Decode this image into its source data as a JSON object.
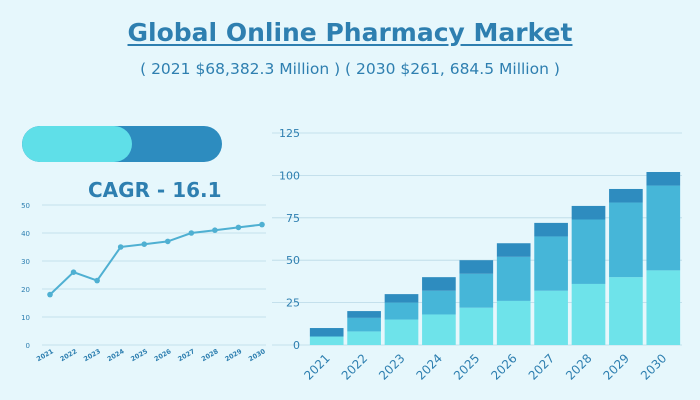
{
  "title": "Global Online Pharmacy Market",
  "subtitle": "( 2021 $68,382.3 Million ) ( 2030 $261, 684.5 Million )",
  "cagr_label": "CAGR - 16.1",
  "colors": {
    "background": "#e6f7fc",
    "text": "#2e7fb0",
    "bar_base": "#6ee3ea",
    "bar_mid": "#46b6d8",
    "bar_top": "#2e8cbf",
    "line": "#4fb0d2",
    "grid": "#b9d9e6"
  },
  "progress": {
    "fraction": 0.55
  },
  "chart_data": [
    {
      "type": "line",
      "x": [
        "2021",
        "2022",
        "2023",
        "2024",
        "2025",
        "2026",
        "2027",
        "2028",
        "2029",
        "2030"
      ],
      "series": [
        {
          "values": [
            18,
            26,
            23,
            35,
            36,
            37,
            40,
            41,
            42,
            43
          ]
        }
      ],
      "ylim": [
        0,
        50
      ],
      "yticks": [
        0,
        10,
        20,
        30,
        40,
        50
      ],
      "grid": true
    },
    {
      "type": "bar",
      "stacked": true,
      "categories": [
        "2021",
        "2022",
        "2023",
        "2024",
        "2025",
        "2026",
        "2027",
        "2028",
        "2029",
        "2030"
      ],
      "series": [
        {
          "values": [
            5,
            8,
            15,
            18,
            22,
            26,
            32,
            36,
            40,
            44
          ]
        },
        {
          "values": [
            0,
            8,
            10,
            14,
            20,
            26,
            32,
            38,
            44,
            50
          ]
        },
        {
          "values": [
            5,
            4,
            5,
            8,
            8,
            8,
            8,
            8,
            8,
            8
          ]
        }
      ],
      "ylim": [
        0,
        125
      ],
      "yticks": [
        0,
        25,
        50,
        75,
        100,
        125
      ],
      "grid": true
    }
  ]
}
